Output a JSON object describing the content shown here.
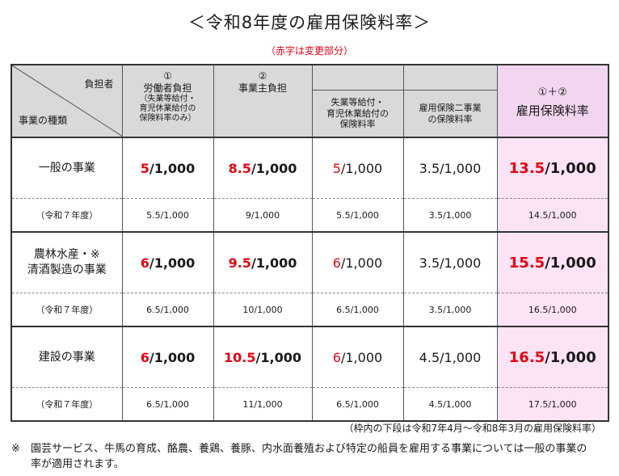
{
  "title": "＜令和8年度の雇用保険料率＞",
  "subtitle": "（赤字は変更部分）",
  "header": {
    "corner_top": "負担者",
    "corner_bottom": "事業の種類",
    "worker_num": "①",
    "worker_label": "労働者負担",
    "worker_note_1": "（失業等給付・",
    "worker_note_2": "育児休業給付の",
    "worker_note_3": "保険料率のみ）",
    "employer_num": "②",
    "employer_label": "事業主負担",
    "employer_sub1_1": "失業等給付・",
    "employer_sub1_2": "育児休業給付の",
    "employer_sub1_3": "保険料率",
    "employer_sub2_1": "雇用保険二事業",
    "employer_sub2_2": "の保険料率",
    "total_num": "①＋②",
    "total_label": "雇用保険料率"
  },
  "prev_label": "（令和７年度）",
  "rows": [
    {
      "category_1": "一般の事業",
      "category_2": "",
      "worker_a": "5",
      "worker_b": "/1,000",
      "employer_a": "8.5",
      "employer_b": "/1,000",
      "sub1_a": "5",
      "sub1_b": "/1,000",
      "sub2": "3.5/1,000",
      "total_a": "13.5",
      "total_b": "/1,000",
      "prev": [
        "5.5/1,000",
        "9/1,000",
        "5.5/1,000",
        "3.5/1,000",
        "14.5/1,000"
      ]
    },
    {
      "category_1": "農林水産・※",
      "category_2": "清酒製造の事業",
      "worker_a": "6",
      "worker_b": "/1,000",
      "employer_a": "9.5",
      "employer_b": "/1,000",
      "sub1_a": "6",
      "sub1_b": "/1,000",
      "sub2": "3.5/1,000",
      "total_a": "15.5",
      "total_b": "/1,000",
      "prev": [
        "6.5/1,000",
        "10/1,000",
        "6.5/1,000",
        "3.5/1,000",
        "16.5/1,000"
      ]
    },
    {
      "category_1": "建設の事業",
      "category_2": "",
      "worker_a": "6",
      "worker_b": "/1,000",
      "employer_a": "10.5",
      "employer_b": "/1,000",
      "sub1_a": "6",
      "sub1_b": "/1,000",
      "sub2": "4.5/1,000",
      "total_a": "16.5",
      "total_b": "/1,000",
      "prev": [
        "6.5/1,000",
        "11/1,000",
        "6.5/1,000",
        "4.5/1,000",
        "17.5/1,000"
      ]
    }
  ],
  "note_period": "（枠内の下段は令和7年4月～令和8年3月の雇用保険料率）",
  "note_mark": "※",
  "note_text": "園芸サービス、牛馬の育成、酪農、養鶏、養豚、内水面養殖および特定の船員を雇用する事業については一般の事業の率が適用されます。",
  "colors": {
    "red": "#e60012",
    "header_gray": "#d9d9d9",
    "total_pink": "#fce4f6"
  }
}
